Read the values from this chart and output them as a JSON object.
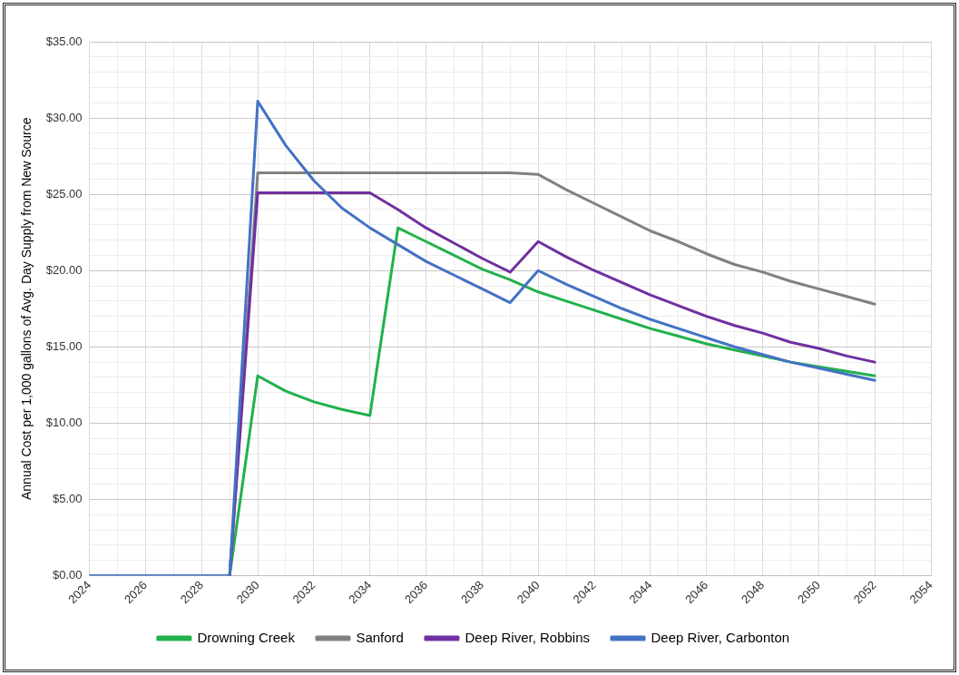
{
  "chart_data": {
    "type": "line",
    "ylabel": "Annual Cost per 1,000 gallons of Avg. Day Supply from New Source",
    "x": [
      2024,
      2025,
      2026,
      2027,
      2028,
      2029,
      2030,
      2031,
      2032,
      2033,
      2034,
      2035,
      2036,
      2037,
      2038,
      2039,
      2040,
      2041,
      2042,
      2043,
      2044,
      2045,
      2046,
      2047,
      2048,
      2049,
      2050,
      2051,
      2052
    ],
    "series": [
      {
        "name": "Drowning Creek",
        "color": "#22b14c",
        "values": [
          null,
          null,
          null,
          null,
          null,
          0,
          13.1,
          12.1,
          11.4,
          10.9,
          10.5,
          22.8,
          21.9,
          21.0,
          20.1,
          19.4,
          18.6,
          18.0,
          17.4,
          16.8,
          16.2,
          15.7,
          15.2,
          14.8,
          14.4,
          14.0,
          13.7,
          13.4,
          13.1
        ]
      },
      {
        "name": "Sanford",
        "color": "#808080",
        "values": [
          null,
          null,
          null,
          null,
          null,
          0,
          26.4,
          26.4,
          26.4,
          26.4,
          26.4,
          26.4,
          26.4,
          26.4,
          26.4,
          26.4,
          26.3,
          25.3,
          24.4,
          23.5,
          22.6,
          21.9,
          21.1,
          20.4,
          19.9,
          19.3,
          18.8,
          18.3,
          17.8
        ]
      },
      {
        "name": "Deep River, Robbins",
        "color": "#7030a0",
        "values": [
          null,
          null,
          null,
          null,
          null,
          0,
          25.1,
          25.1,
          25.1,
          25.1,
          25.1,
          24.0,
          22.8,
          21.8,
          20.8,
          19.9,
          21.9,
          20.9,
          20.0,
          19.2,
          18.4,
          17.7,
          17.0,
          16.4,
          15.9,
          15.3,
          14.9,
          14.4,
          14.0
        ]
      },
      {
        "name": "Deep River, Carbonton",
        "color": "#4472c4",
        "values": [
          0,
          0,
          0,
          0,
          0,
          0,
          31.1,
          28.2,
          25.9,
          24.1,
          22.8,
          21.7,
          20.6,
          19.7,
          18.8,
          17.9,
          20.0,
          19.1,
          18.3,
          17.5,
          16.8,
          16.2,
          15.6,
          15.0,
          14.5,
          14.0,
          13.6,
          13.2,
          12.8
        ]
      }
    ],
    "xlim": [
      2024,
      2054
    ],
    "xticks": [
      2024,
      {
        "value": 2025,
        "label": null
      },
      2026,
      {
        "value": 2027,
        "label": null
      },
      2028,
      {
        "value": 2029,
        "label": null
      },
      2030,
      {
        "value": 2031,
        "label": null
      },
      2032,
      {
        "value": 2033,
        "label": null
      },
      2034,
      {
        "value": 2035,
        "label": null
      },
      2036,
      {
        "value": 2037,
        "label": null
      },
      2038,
      {
        "value": 2039,
        "label": null
      },
      2040,
      {
        "value": 2041,
        "label": null
      },
      2042,
      {
        "value": 2043,
        "label": null
      },
      2044,
      {
        "value": 2045,
        "label": null
      },
      2046,
      {
        "value": 2047,
        "label": null
      },
      2048,
      {
        "value": 2049,
        "label": null
      },
      2050,
      {
        "value": 2051,
        "label": null
      },
      2052,
      {
        "value": 2053,
        "label": null
      },
      2054
    ],
    "ylim": [
      0,
      35
    ],
    "yticks": [
      {
        "value": 0,
        "label": "$0.00"
      },
      {
        "value": 1,
        "label": null
      },
      {
        "value": 2,
        "label": null
      },
      {
        "value": 3,
        "label": null
      },
      {
        "value": 4,
        "label": null
      },
      {
        "value": 5,
        "label": "$5.00"
      },
      {
        "value": 6,
        "label": null
      },
      {
        "value": 7,
        "label": null
      },
      {
        "value": 8,
        "label": null
      },
      {
        "value": 9,
        "label": null
      },
      {
        "value": 10,
        "label": "$10.00"
      },
      {
        "value": 11,
        "label": null
      },
      {
        "value": 12,
        "label": null
      },
      {
        "value": 13,
        "label": null
      },
      {
        "value": 14,
        "label": null
      },
      {
        "value": 15,
        "label": "$15.00"
      },
      {
        "value": 16,
        "label": null
      },
      {
        "value": 17,
        "label": null
      },
      {
        "value": 18,
        "label": null
      },
      {
        "value": 19,
        "label": null
      },
      {
        "value": 20,
        "label": "$20.00"
      },
      {
        "value": 21,
        "label": null
      },
      {
        "value": 22,
        "label": null
      },
      {
        "value": 23,
        "label": null
      },
      {
        "value": 24,
        "label": null
      },
      {
        "value": 25,
        "label": "$25.00"
      },
      {
        "value": 26,
        "label": null
      },
      {
        "value": 27,
        "label": null
      },
      {
        "value": 28,
        "label": null
      },
      {
        "value": 29,
        "label": null
      },
      {
        "value": 30,
        "label": "$30.00"
      },
      {
        "value": 31,
        "label": null
      },
      {
        "value": 32,
        "label": null
      },
      {
        "value": 33,
        "label": null
      },
      {
        "value": 34,
        "label": null
      },
      {
        "value": 35,
        "label": "$35.00"
      }
    ],
    "grid": true,
    "legend": "bottom",
    "marker": "none",
    "line_style": "solid"
  }
}
